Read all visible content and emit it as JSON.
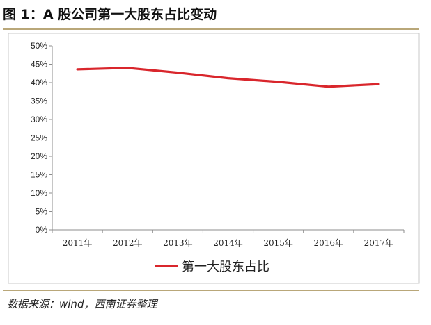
{
  "figure": {
    "title": "图 1：A 股公司第一大股东占比变动",
    "source": "数据来源：wind，西南证券整理"
  },
  "colors": {
    "series_line": "#d9262c",
    "rule": "#b9a779",
    "frame": "#c8c8c8"
  },
  "chart_data": {
    "type": "line",
    "categories": [
      "2011年",
      "2012年",
      "2013年",
      "2014年",
      "2015年",
      "2016年",
      "2017年"
    ],
    "series": [
      {
        "name": "第一大股东占比",
        "values": [
          43.6,
          44.0,
          42.7,
          41.2,
          40.2,
          38.9,
          39.6
        ]
      }
    ],
    "ylim": [
      0,
      50
    ],
    "yticks": [
      0,
      5,
      10,
      15,
      20,
      25,
      30,
      35,
      40,
      45,
      50
    ],
    "ytick_labels": [
      "0%",
      "5%",
      "10%",
      "15%",
      "20%",
      "25%",
      "30%",
      "35%",
      "40%",
      "45%",
      "50%"
    ],
    "grid": false,
    "legend_position": "bottom-left"
  }
}
